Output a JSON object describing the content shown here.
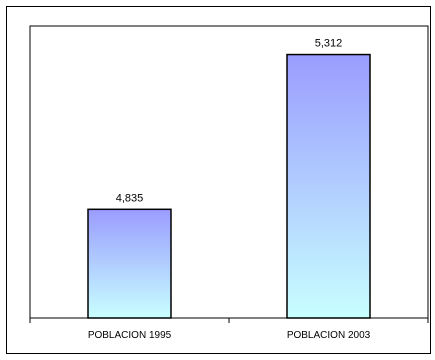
{
  "chart_data": {
    "type": "bar",
    "categories": [
      "POBLACION 1995",
      "POBLACION 2003"
    ],
    "values": [
      4835,
      5312
    ],
    "data_labels": [
      "4,835",
      "5,312"
    ],
    "ylim": [
      4500,
      5400
    ],
    "grid": false,
    "legend": "none",
    "colors": {
      "bar_top": "#9a9cff",
      "bar_bottom": "#c8ffff",
      "bar_edge": "#000000"
    }
  }
}
